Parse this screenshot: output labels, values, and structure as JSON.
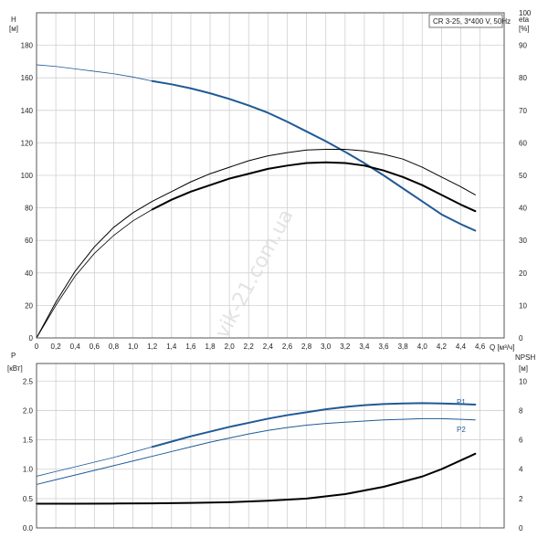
{
  "legend_box": "CR 3-25, 3*400 V, 50Hz",
  "watermark": "vik-21.com.ua",
  "chart_data": [
    {
      "type": "line",
      "name": "top",
      "xlabel": "Q [м³/ч]",
      "x_ticks": [
        0,
        0.2,
        0.4,
        0.6,
        0.8,
        1.0,
        1.2,
        1.4,
        1.6,
        1.8,
        2.0,
        2.2,
        2.4,
        2.6,
        2.8,
        3.0,
        3.2,
        3.4,
        3.6,
        3.8,
        4.0,
        4.2,
        4.4,
        4.6
      ],
      "x_tick_labels": [
        "0",
        "0,2",
        "0,4",
        "0,6",
        "0,8",
        "1,0",
        "1,2",
        "1,4",
        "1,6",
        "1,8",
        "2,0",
        "2,2",
        "2,4",
        "2,6",
        "2,8",
        "3,0",
        "3,2",
        "3,4",
        "3,6",
        "3,8",
        "4,0",
        "4,2",
        "4,4",
        "4,6"
      ],
      "xlim": [
        0,
        4.85
      ],
      "y_left": {
        "label_line1": "H",
        "label_line2": "[м]",
        "lim": [
          0,
          200
        ],
        "ticks": [
          0,
          20,
          40,
          60,
          80,
          100,
          120,
          140,
          160,
          180
        ]
      },
      "y_right": {
        "label_line1": "eta",
        "label_line2": "[%]",
        "lim": [
          0,
          100
        ],
        "ticks": [
          0,
          10,
          20,
          30,
          40,
          50,
          60,
          70,
          80,
          90,
          100
        ]
      },
      "series": [
        {
          "axis": "left",
          "color": "#1f5a96",
          "x": [
            0,
            0.2,
            0.4,
            0.6,
            0.8,
            1.0,
            1.2
          ],
          "y": [
            168,
            167,
            165.5,
            164,
            162.5,
            160.5,
            158
          ]
        },
        {
          "axis": "left",
          "color": "#1f5a96",
          "x": [
            1.2,
            1.4,
            1.6,
            1.8,
            2.0,
            2.2,
            2.4,
            2.6,
            2.8,
            3.0,
            3.2,
            3.4,
            3.6,
            3.8,
            4.0,
            4.2,
            4.4,
            4.55
          ],
          "y": [
            158,
            156,
            153.5,
            150.5,
            147,
            143,
            138.5,
            133,
            127,
            121,
            114.5,
            107.5,
            100,
            92,
            84,
            76,
            70,
            66
          ]
        },
        {
          "axis": "right",
          "color": "#000000",
          "x": [
            0,
            0.2,
            0.4,
            0.6,
            0.8,
            1.0,
            1.2
          ],
          "y": [
            0,
            10,
            19,
            26,
            31.5,
            36,
            39.5
          ]
        },
        {
          "axis": "right",
          "color": "#000000",
          "x": [
            1.2,
            1.4,
            1.6,
            1.8,
            2.0,
            2.2,
            2.4,
            2.6,
            2.8,
            3.0,
            3.2,
            3.4,
            3.6,
            3.8,
            4.0,
            4.2,
            4.4,
            4.55
          ],
          "y": [
            39.5,
            42.5,
            45,
            47,
            49,
            50.5,
            52,
            53,
            53.8,
            54,
            53.8,
            53,
            51.5,
            49.5,
            47,
            44,
            41,
            39
          ]
        },
        {
          "axis": "right",
          "color": "#000000",
          "x": [
            0,
            0.2,
            0.4,
            0.6,
            0.8,
            1.0,
            1.2,
            1.4,
            1.6,
            1.8,
            2.0,
            2.2,
            2.4,
            2.6,
            2.8,
            3.0,
            3.2,
            3.4,
            3.6,
            3.8,
            4.0,
            4.2,
            4.4,
            4.55
          ],
          "y": [
            0,
            11,
            20.5,
            28,
            34,
            38.5,
            42,
            45,
            48,
            50.5,
            52.5,
            54.5,
            56,
            57,
            57.8,
            58,
            58,
            57.5,
            56.5,
            55,
            52.5,
            49.5,
            46.5,
            44
          ]
        }
      ]
    },
    {
      "type": "line",
      "name": "bottom",
      "xlim": [
        0,
        4.85
      ],
      "x_ticks": [
        0,
        0.2,
        0.4,
        0.6,
        0.8,
        1.0,
        1.2,
        1.4,
        1.6,
        1.8,
        2.0,
        2.2,
        2.4,
        2.6,
        2.8,
        3.0,
        3.2,
        3.4,
        3.6,
        3.8,
        4.0,
        4.2,
        4.4,
        4.6
      ],
      "y_left": {
        "label_line1": "P",
        "label_line2": "[кВт]",
        "lim": [
          0,
          2.8
        ],
        "ticks": [
          0,
          0.5,
          1.0,
          1.5,
          2.0,
          2.5
        ],
        "tick_labels": [
          "0.0",
          "0.5",
          "1.0",
          "1.5",
          "2.0",
          "2.5"
        ]
      },
      "y_right": {
        "label_line1": "NPSH",
        "label_line2": "[м]",
        "lim": [
          0,
          11.2
        ],
        "ticks": [
          0,
          2,
          4,
          6,
          8,
          10
        ],
        "tick_labels": [
          "0",
          "2",
          "4",
          "6",
          "8",
          "10"
        ]
      },
      "series": [
        {
          "name": "P1",
          "axis": "left",
          "color": "#1f5a96",
          "x": [
            0,
            0.2,
            0.4,
            0.6,
            0.8,
            1.0,
            1.2
          ],
          "y": [
            0.88,
            0.96,
            1.04,
            1.12,
            1.2,
            1.29,
            1.38
          ]
        },
        {
          "axis": "left",
          "color": "#1f5a96",
          "x": [
            1.2,
            1.4,
            1.6,
            1.8,
            2.0,
            2.2,
            2.4,
            2.6,
            2.8,
            3.0,
            3.2,
            3.4,
            3.6,
            3.8,
            4.0,
            4.2,
            4.4,
            4.55
          ],
          "y": [
            1.38,
            1.47,
            1.56,
            1.64,
            1.72,
            1.79,
            1.86,
            1.92,
            1.97,
            2.02,
            2.06,
            2.09,
            2.11,
            2.12,
            2.125,
            2.12,
            2.11,
            2.1
          ]
        },
        {
          "name": "P2",
          "axis": "left",
          "color": "#1f5a96",
          "x": [
            0,
            0.2,
            0.4,
            0.6,
            0.8,
            1.0,
            1.2,
            1.4,
            1.6,
            1.8,
            2.0,
            2.2,
            2.4,
            2.6,
            2.8,
            3.0,
            3.2,
            3.4,
            3.6,
            3.8,
            4.0,
            4.2,
            4.4,
            4.55
          ],
          "y": [
            0.74,
            0.82,
            0.9,
            0.98,
            1.06,
            1.14,
            1.22,
            1.3,
            1.38,
            1.46,
            1.53,
            1.6,
            1.66,
            1.71,
            1.75,
            1.78,
            1.8,
            1.82,
            1.84,
            1.85,
            1.86,
            1.86,
            1.85,
            1.84
          ]
        },
        {
          "axis": "right",
          "color": "#000000",
          "x": [
            0,
            0.4,
            0.8,
            1.2,
            1.6,
            2.0,
            2.4,
            2.8,
            3.2,
            3.6,
            4.0,
            4.2,
            4.4,
            4.55
          ],
          "y": [
            1.65,
            1.65,
            1.66,
            1.67,
            1.7,
            1.75,
            1.85,
            2.0,
            2.3,
            2.8,
            3.5,
            4.0,
            4.6,
            5.05
          ]
        }
      ]
    }
  ]
}
